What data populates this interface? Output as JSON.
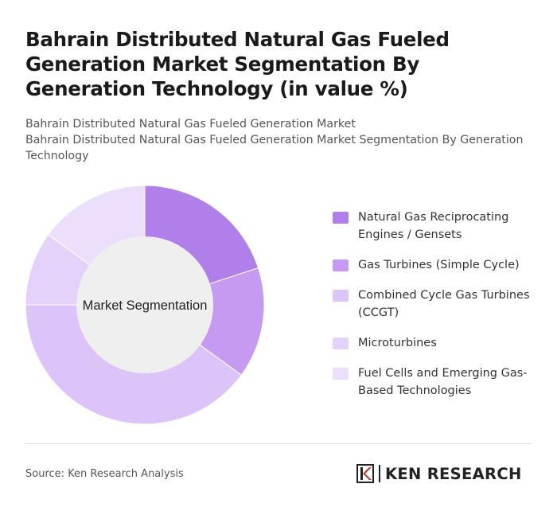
{
  "header": {
    "title": "Bahrain Distributed Natural Gas Fueled Generation Market Segmentation By Generation Technology (in value %)",
    "subtitle_line1": "Bahrain Distributed Natural Gas Fueled Generation Market",
    "subtitle_line2": "Bahrain Distributed Natural Gas Fueled Generation Market Segmentation By Generation Technology"
  },
  "chart_data": {
    "type": "pie",
    "variant": "donut",
    "center_label": "Market Segmentation",
    "categories": [
      "Natural Gas Reciprocating Engines / Gensets",
      "Gas Turbines (Simple Cycle)",
      "Combined Cycle Gas Turbines (CCGT)",
      "Microturbines",
      "Fuel Cells and Emerging Gas-Based Technologies"
    ],
    "values": [
      20,
      15,
      40,
      10,
      15
    ],
    "colors": [
      "#b07fea",
      "#c59af0",
      "#dcc4f8",
      "#e4d2fa",
      "#ecdffb"
    ],
    "legend_position": "right"
  },
  "footer": {
    "source": "Source: Ken Research Analysis",
    "logo_text": "KEN RESEARCH"
  }
}
